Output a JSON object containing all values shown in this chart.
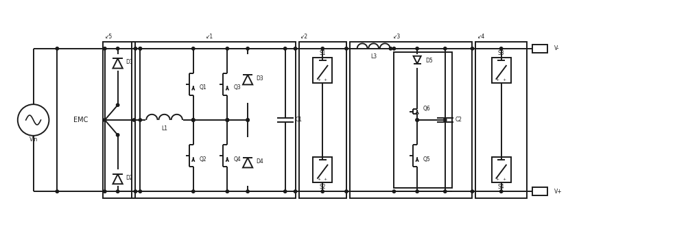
{
  "bg_color": "#ffffff",
  "line_color": "#1a1a1a",
  "line_width": 1.4,
  "fig_width": 10.0,
  "fig_height": 3.5,
  "dpi": 100,
  "top_y": 28.0,
  "bot_y": 7.0,
  "xlim": [
    0,
    100
  ],
  "ylim": [
    0,
    35
  ]
}
